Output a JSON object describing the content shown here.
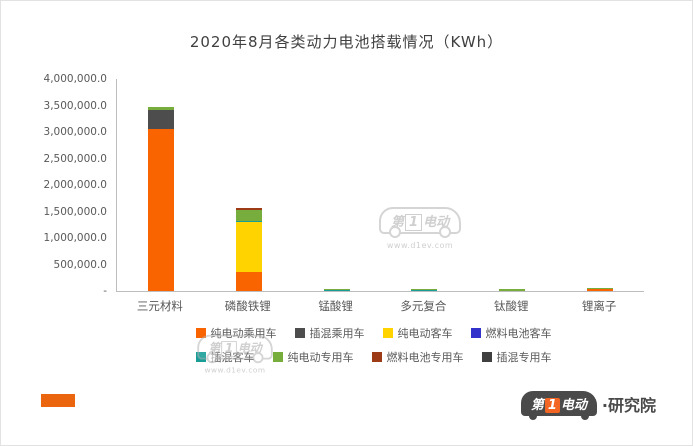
{
  "chart_data": {
    "type": "bar",
    "stacked": true,
    "title": "2020年8月各类动力电池搭载情况（KWh）",
    "categories": [
      "三元材料",
      "磷酸铁锂",
      "锰酸锂",
      "多元复合",
      "钛酸锂",
      "锂离子"
    ],
    "series": [
      {
        "name": "纯电动乘用车",
        "color": "#FA6400",
        "values": [
          3050000,
          350000,
          0,
          0,
          0,
          40000
        ]
      },
      {
        "name": "插混乘用车",
        "color": "#4D4D4D",
        "values": [
          350000,
          0,
          0,
          0,
          0,
          0
        ]
      },
      {
        "name": "纯电动客车",
        "color": "#FFD300",
        "values": [
          0,
          950000,
          0,
          0,
          0,
          0
        ]
      },
      {
        "name": "燃料电池客车",
        "color": "#3333CC",
        "values": [
          0,
          0,
          0,
          0,
          0,
          0
        ]
      },
      {
        "name": "插混客车",
        "color": "#189E97",
        "values": [
          0,
          20000,
          20000,
          8000,
          0,
          0
        ]
      },
      {
        "name": "纯电动专用车",
        "color": "#76AD3C",
        "values": [
          60000,
          200000,
          15000,
          8000,
          30000,
          8000
        ]
      },
      {
        "name": "燃料电池专用车",
        "color": "#9E3B17",
        "values": [
          0,
          40000,
          0,
          0,
          0,
          0
        ]
      },
      {
        "name": "插混专用车",
        "color": "#3F3F3F",
        "values": [
          0,
          0,
          0,
          0,
          0,
          0
        ]
      }
    ],
    "legend_row_split": 4,
    "legend_position": "bottom",
    "grid": false,
    "y_ticks": [
      "4,000,000.0",
      "3,500,000.0",
      "3,000,000.0",
      "2,500,000.0",
      "2,000,000.0",
      "1,500,000.0",
      "1,000,000.0",
      "500,000.0",
      "-"
    ],
    "ylim": [
      0,
      4000000
    ],
    "xlabel": "",
    "ylabel": ""
  },
  "watermark": {
    "brand_pre": "第",
    "brand_num": "1",
    "brand_post": "电动",
    "url": "www.d1ev.com"
  },
  "footer": {
    "brand_pre": "第",
    "brand_num": "1",
    "brand_post": "电动",
    "suffix": "·研究院"
  }
}
